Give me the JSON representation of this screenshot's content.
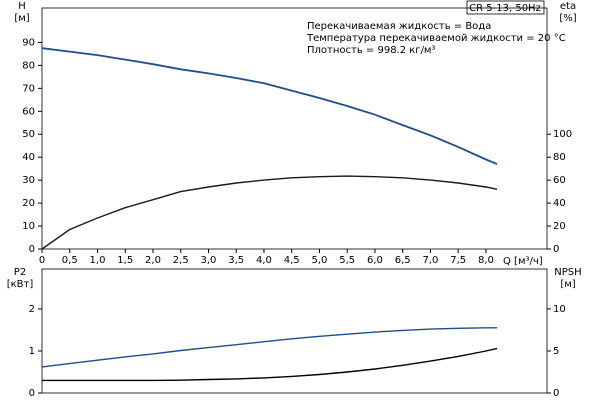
{
  "chart_data": [
    {
      "type": "line",
      "title": "CR 5-13, 50Hz",
      "annotations": [
        "Перекачиваемая жидкость = Вода",
        "Температура перекачиваемой жидкости = 20 °C",
        "Плотность = 998.2 кг/м³"
      ],
      "ylabel": "H",
      "yunit": "[м]",
      "y2label": "eta",
      "y2unit": "[%]",
      "xlabel": "Q [м³/ч]",
      "x": [
        0,
        0.5,
        1,
        1.5,
        2,
        2.5,
        3,
        3.5,
        4,
        4.5,
        5,
        5.5,
        6,
        6.5,
        7,
        7.5,
        8,
        8.2
      ],
      "series": [
        {
          "color": "#1f4e8c",
          "values": [
            87.5,
            86,
            84.5,
            82.5,
            80.5,
            78.3,
            76.5,
            74.5,
            72.2,
            69,
            65.8,
            62.3,
            58.5,
            54,
            49.5,
            44.5,
            39,
            37
          ]
        },
        {
          "color": "#1a1a1a",
          "axis": "y2",
          "values": [
            0,
            17,
            27,
            36,
            43,
            50,
            54,
            57.5,
            60,
            62,
            63,
            63.5,
            63,
            62,
            60,
            57.5,
            54,
            52
          ]
        }
      ],
      "xlim": [
        0,
        9.1
      ],
      "xticks": [
        0,
        {
          "value": 0.5,
          "label": "0,5"
        },
        {
          "value": 1,
          "label": "1,0"
        },
        {
          "value": 1.5,
          "label": "1,5"
        },
        {
          "value": 2,
          "label": "2,0"
        },
        {
          "value": 2.5,
          "label": "2,5"
        },
        {
          "value": 3,
          "label": "3,0"
        },
        {
          "value": 3.5,
          "label": "3,5"
        },
        {
          "value": 4,
          "label": "4,0"
        },
        {
          "value": 4.5,
          "label": "4,5"
        },
        {
          "value": 5,
          "label": "5,0"
        },
        {
          "value": 5.5,
          "label": "5,5"
        },
        {
          "value": 6,
          "label": "6,0"
        },
        {
          "value": 6.5,
          "label": "6,5"
        },
        {
          "value": 7,
          "label": "7,0"
        },
        {
          "value": 7.5,
          "label": "7,5"
        },
        {
          "value": 8,
          "label": "8,0"
        }
      ],
      "ylim": [
        0,
        105
      ],
      "yticks": [
        0,
        10,
        20,
        30,
        40,
        50,
        60,
        70,
        80,
        90
      ],
      "y2lim": [
        0,
        210
      ],
      "y2ticks": [
        0,
        20,
        40,
        60,
        80,
        100
      ]
    },
    {
      "type": "line",
      "ylabel": "P2",
      "yunit": "[кВт]",
      "y2label": "NPSH",
      "y2unit": "[м]",
      "x": [
        0,
        0.5,
        1,
        1.5,
        2,
        2.5,
        3,
        3.5,
        4,
        4.5,
        5,
        5.5,
        6,
        6.5,
        7,
        7.5,
        8,
        8.2
      ],
      "series": [
        {
          "color": "#1f4e8c",
          "values": [
            0.62,
            0.7,
            0.78,
            0.86,
            0.93,
            1.01,
            1.08,
            1.15,
            1.22,
            1.29,
            1.35,
            1.4,
            1.45,
            1.49,
            1.52,
            1.54,
            1.55,
            1.55
          ]
        },
        {
          "color": "#000000",
          "axis": "y2",
          "values": [
            1.5,
            1.5,
            1.5,
            1.5,
            1.5,
            1.52,
            1.6,
            1.68,
            1.8,
            1.98,
            2.2,
            2.5,
            2.85,
            3.3,
            3.8,
            4.35,
            5.0,
            5.3
          ]
        }
      ],
      "xlim": [
        0,
        9.1
      ],
      "ylim": [
        0,
        2.95
      ],
      "yticks": [
        0,
        1,
        2
      ],
      "y2lim": [
        0,
        14.75
      ],
      "y2ticks": [
        0,
        5,
        10
      ]
    }
  ]
}
